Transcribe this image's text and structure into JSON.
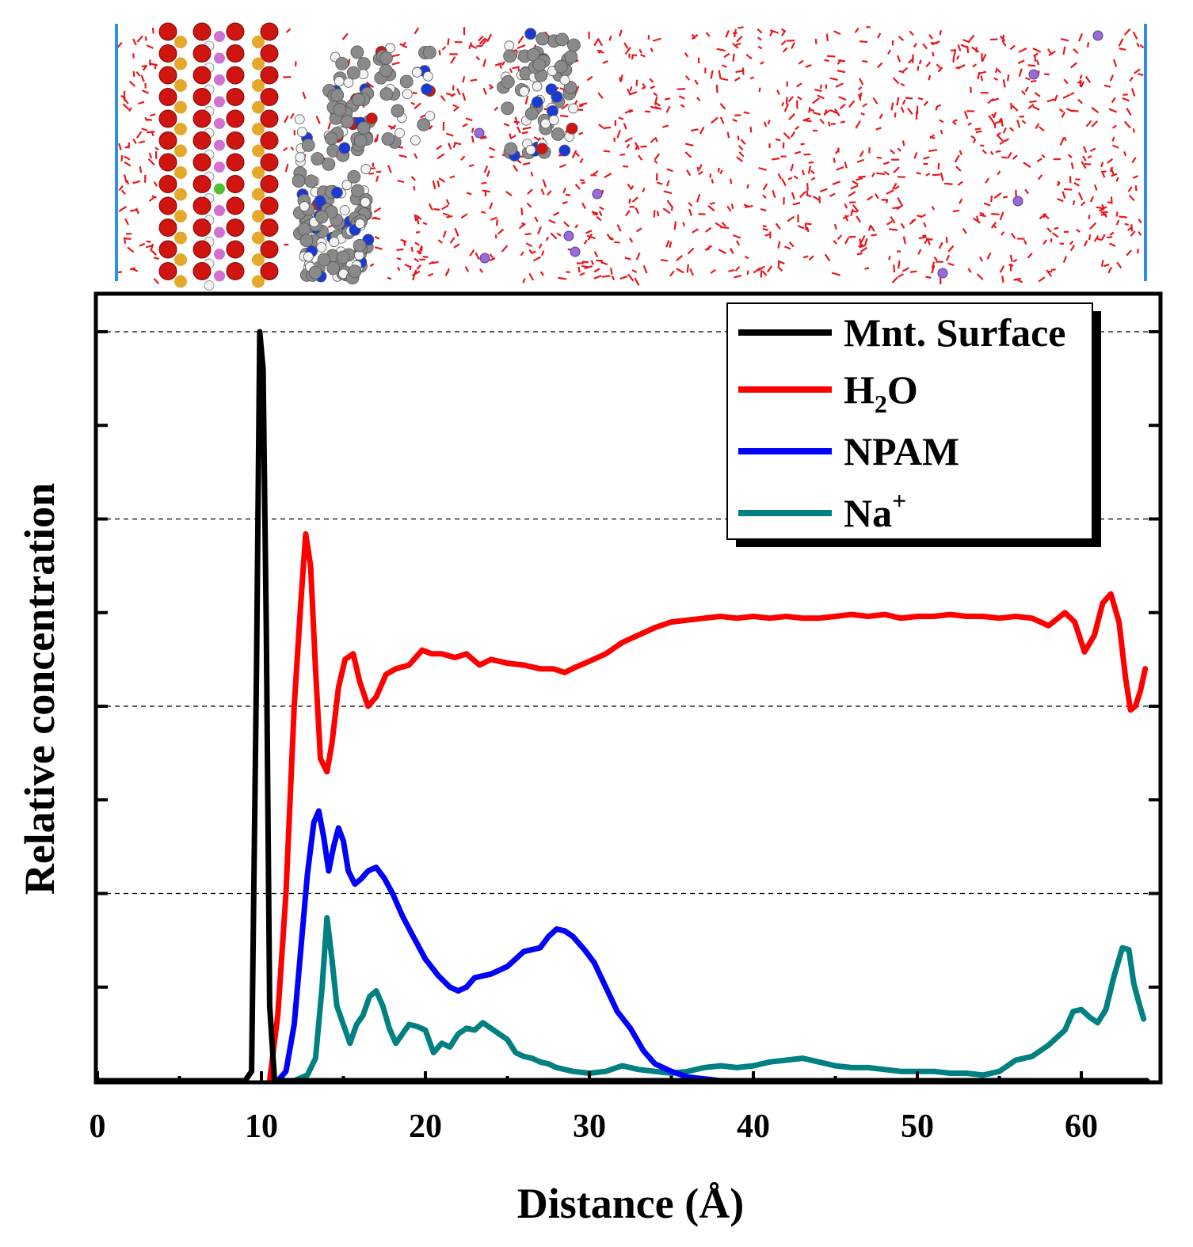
{
  "snapshot": {
    "description_name": "molecular-dynamics-snapshot",
    "water_color": "#e8161b",
    "sodium_color": "#9a6ad6",
    "boundary_color": "#2f8fe6",
    "oxygen_color": "#d0140f",
    "silicon_color": "#e5a82a",
    "aluminum_color": "#d070d0",
    "magnesium_color": "#50c030",
    "carbon_color": "#8a8a8a",
    "nitrogen_color": "#1a3ad8",
    "hydrogen_color": "#f2f2f2"
  },
  "chart_data": {
    "type": "line",
    "title": "",
    "xlabel": "Distance (Å)",
    "ylabel": "Relative concentration",
    "xlim": [
      0,
      65
    ],
    "ylim": [
      0,
      4.0
    ],
    "xticks": [
      0,
      10,
      20,
      30,
      40,
      50,
      60
    ],
    "xtick_labels": [
      "0",
      "10",
      "20",
      "30",
      "40",
      "50",
      "60"
    ],
    "ytick_gridlines": [
      1,
      2,
      3,
      4
    ],
    "yminor_ticks": [
      0.5,
      1.5,
      2.5,
      3.5
    ],
    "grid": "dashed horizontal",
    "legend_position": "top-right",
    "series": [
      {
        "name": "Mnt. Surface",
        "legend_main": "Mnt. Surface",
        "legend_sub": "",
        "legend_sup": "",
        "legend_tail": "",
        "color": "#000000",
        "x": [
          0,
          9.0,
          9.4,
          9.7,
          9.9,
          10.1,
          10.3,
          10.5,
          10.8,
          64
        ],
        "y": [
          0,
          0,
          0.05,
          2.2,
          4.0,
          3.8,
          2.4,
          0.4,
          0,
          0
        ]
      },
      {
        "name": "H2O",
        "legend_main": "H",
        "legend_sub": "2",
        "legend_sup": "",
        "legend_tail": "O",
        "color": "#ff0000",
        "x": [
          10.5,
          11.0,
          11.5,
          12.0,
          12.4,
          12.7,
          13.0,
          13.3,
          13.6,
          14.0,
          14.3,
          14.7,
          15.1,
          15.6,
          16.0,
          16.5,
          17.0,
          17.6,
          18.2,
          19.0,
          19.8,
          20.4,
          21.0,
          21.8,
          22.5,
          23.3,
          24.0,
          25.0,
          26.0,
          27.0,
          27.8,
          28.5,
          29.2,
          30.0,
          31.0,
          32.0,
          33.0,
          34.0,
          35.0,
          36.0,
          37.0,
          38.0,
          39.0,
          40.0,
          41.0,
          42.0,
          43.0,
          44.0,
          45.0,
          46.0,
          47.0,
          48.0,
          49.0,
          50.0,
          51.0,
          52.0,
          53.0,
          54.0,
          55.0,
          56.0,
          57.0,
          58.0,
          59.0,
          59.6,
          60.2,
          60.8,
          61.3,
          61.8,
          62.3,
          62.7,
          63.0,
          63.3,
          63.6,
          63.9
        ],
        "y": [
          0,
          0.35,
          1.0,
          2.0,
          2.55,
          2.92,
          2.75,
          2.2,
          1.72,
          1.65,
          1.8,
          2.1,
          2.25,
          2.28,
          2.13,
          2.0,
          2.05,
          2.17,
          2.2,
          2.22,
          2.3,
          2.28,
          2.28,
          2.26,
          2.28,
          2.22,
          2.25,
          2.23,
          2.22,
          2.2,
          2.2,
          2.18,
          2.21,
          2.24,
          2.28,
          2.34,
          2.38,
          2.42,
          2.45,
          2.46,
          2.47,
          2.48,
          2.47,
          2.48,
          2.47,
          2.48,
          2.47,
          2.47,
          2.48,
          2.49,
          2.48,
          2.49,
          2.47,
          2.48,
          2.48,
          2.49,
          2.48,
          2.48,
          2.47,
          2.48,
          2.47,
          2.43,
          2.5,
          2.45,
          2.29,
          2.38,
          2.55,
          2.6,
          2.45,
          2.15,
          1.98,
          2.0,
          2.08,
          2.2
        ]
      },
      {
        "name": "NPAM",
        "legend_main": "NPAM",
        "legend_sub": "",
        "legend_sup": "",
        "legend_tail": "",
        "color": "#0000ff",
        "x": [
          11.0,
          11.5,
          12.0,
          12.4,
          12.8,
          13.2,
          13.5,
          13.8,
          14.1,
          14.4,
          14.7,
          15.0,
          15.3,
          15.7,
          16.1,
          16.5,
          17.0,
          17.5,
          18.0,
          18.6,
          19.2,
          20.0,
          20.8,
          21.5,
          22.0,
          22.5,
          23.0,
          24.0,
          25.0,
          26.0,
          27.0,
          27.5,
          28.0,
          28.5,
          29.0,
          29.7,
          30.3,
          31.0,
          31.7,
          32.5,
          33.3,
          34.0,
          35.0,
          36.0,
          37.0,
          38.0,
          40.0,
          45.0,
          55.0,
          64.0
        ],
        "y": [
          0,
          0.05,
          0.3,
          0.7,
          1.1,
          1.38,
          1.44,
          1.3,
          1.12,
          1.25,
          1.35,
          1.28,
          1.12,
          1.05,
          1.08,
          1.12,
          1.14,
          1.08,
          1.0,
          0.88,
          0.78,
          0.65,
          0.56,
          0.5,
          0.48,
          0.5,
          0.55,
          0.57,
          0.61,
          0.69,
          0.71,
          0.77,
          0.81,
          0.8,
          0.77,
          0.7,
          0.63,
          0.5,
          0.37,
          0.28,
          0.16,
          0.09,
          0.05,
          0.02,
          0.01,
          0,
          0,
          0,
          0,
          0
        ]
      },
      {
        "name": "Na+",
        "legend_main": "Na",
        "legend_sub": "",
        "legend_sup": "+",
        "legend_tail": "",
        "color": "#008080",
        "x": [
          12.0,
          12.8,
          13.3,
          13.7,
          14.0,
          14.3,
          14.6,
          15.0,
          15.4,
          15.8,
          16.2,
          16.6,
          17.0,
          17.4,
          17.8,
          18.2,
          18.6,
          19.0,
          19.5,
          20.0,
          20.5,
          21.0,
          21.5,
          22.0,
          22.5,
          23.0,
          23.5,
          24.0,
          24.5,
          25.0,
          25.5,
          26.0,
          26.5,
          27.0,
          27.5,
          28.0,
          29.0,
          30.0,
          31.0,
          32.0,
          33.0,
          34.0,
          35.0,
          36.0,
          37.0,
          38.0,
          39.0,
          40.0,
          41.0,
          42.0,
          43.0,
          44.0,
          45.0,
          46.0,
          47.0,
          48.0,
          49.0,
          50.0,
          51.0,
          52.0,
          53.0,
          54.0,
          55.0,
          56.0,
          57.0,
          58.0,
          59.0,
          59.5,
          60.0,
          60.5,
          61.0,
          61.5,
          62.0,
          62.5,
          62.9,
          63.2,
          63.5,
          63.8
        ],
        "y": [
          0,
          0.03,
          0.12,
          0.5,
          0.87,
          0.65,
          0.4,
          0.3,
          0.2,
          0.3,
          0.35,
          0.45,
          0.48,
          0.4,
          0.28,
          0.2,
          0.25,
          0.3,
          0.29,
          0.27,
          0.15,
          0.2,
          0.18,
          0.25,
          0.28,
          0.27,
          0.31,
          0.28,
          0.25,
          0.22,
          0.15,
          0.13,
          0.12,
          0.1,
          0.09,
          0.07,
          0.05,
          0.04,
          0.05,
          0.08,
          0.06,
          0.05,
          0.04,
          0.05,
          0.07,
          0.08,
          0.07,
          0.08,
          0.1,
          0.11,
          0.12,
          0.1,
          0.08,
          0.07,
          0.07,
          0.06,
          0.05,
          0.05,
          0.05,
          0.04,
          0.04,
          0.03,
          0.05,
          0.11,
          0.13,
          0.19,
          0.27,
          0.37,
          0.38,
          0.34,
          0.31,
          0.38,
          0.56,
          0.71,
          0.7,
          0.52,
          0.42,
          0.33
        ]
      }
    ]
  }
}
